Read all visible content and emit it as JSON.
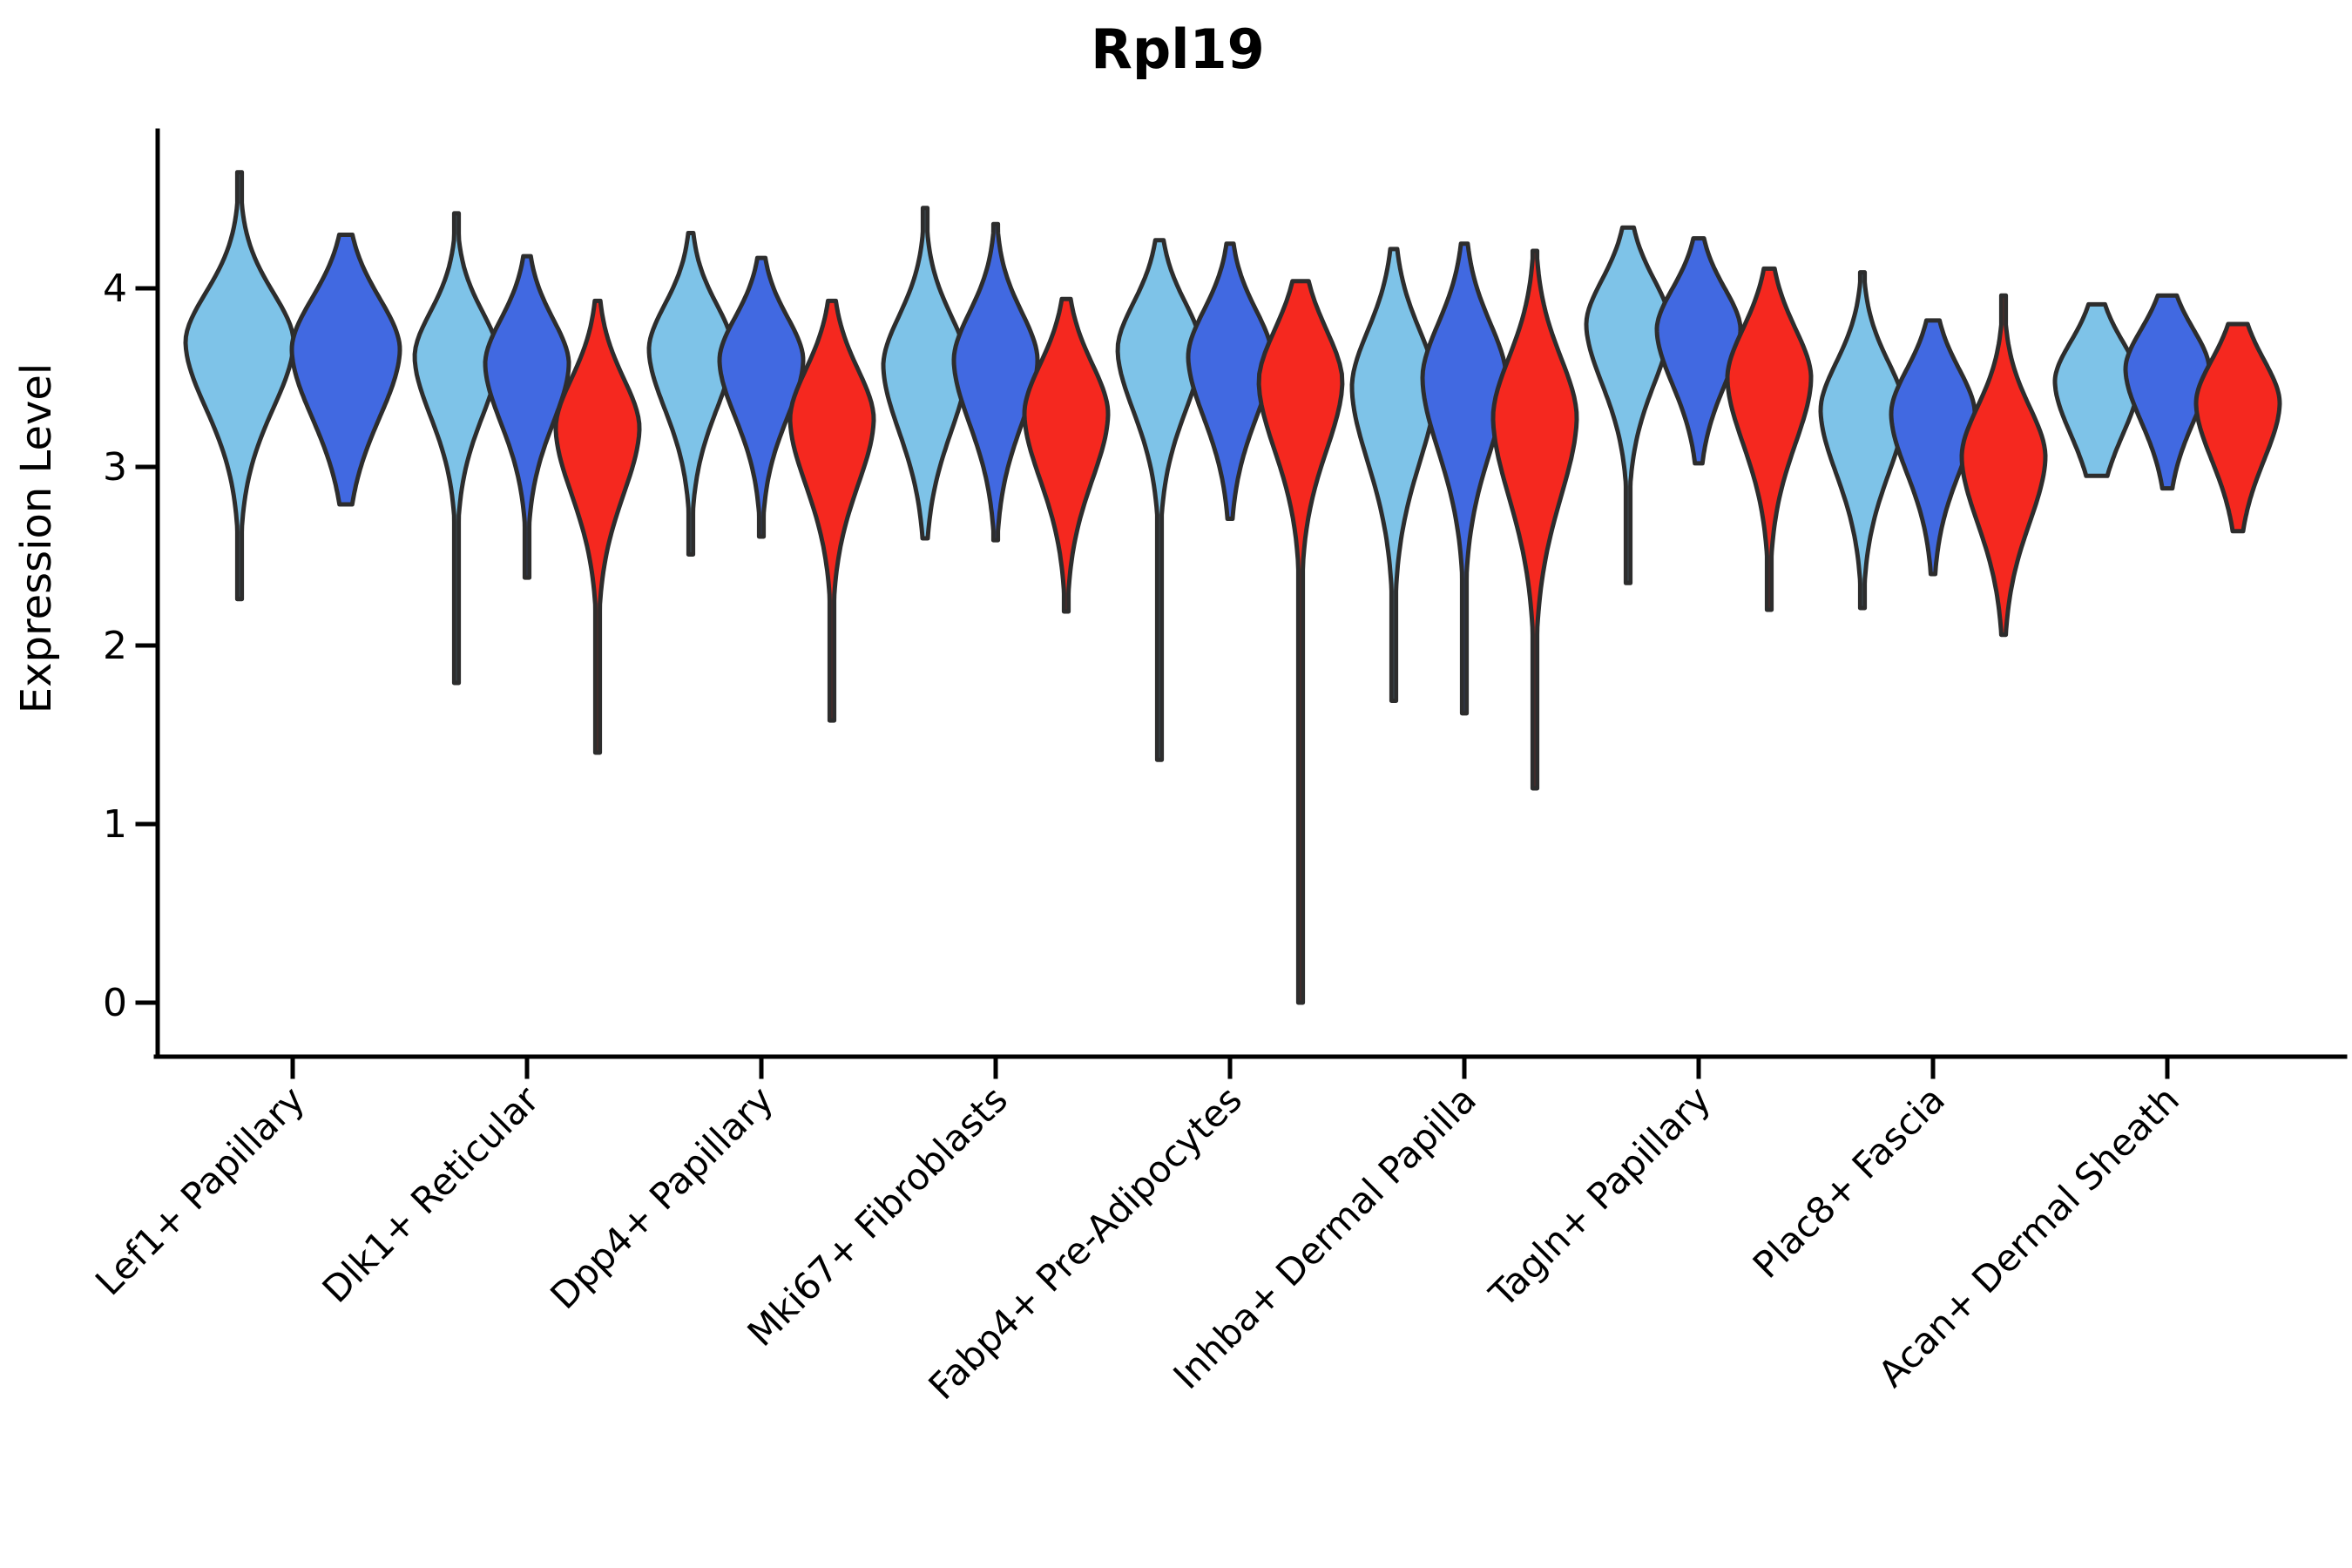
{
  "title": "Rpl19",
  "ylabel": "Expression Level",
  "axis_color": "#000000",
  "violin_stroke_color": "#2d2d2d",
  "series": [
    {
      "name": "light-blue",
      "color": "#7EC3E8"
    },
    {
      "name": "royal-blue",
      "color": "#4169E1"
    },
    {
      "name": "red",
      "color": "#F5281F"
    }
  ],
  "chart_data": {
    "type": "violin",
    "title": "Rpl19",
    "xlabel": "",
    "ylabel": "Expression Level",
    "ylim": [
      -0.3,
      4.9
    ],
    "yticks": [
      0,
      1,
      2,
      3,
      4
    ],
    "grid": "off",
    "legend": "none",
    "categories": [
      "Lef1+ Papillary",
      "Dlk1+ Reticular",
      "Dpp4+ Papillary",
      "Mki67+ Fibroblasts",
      "Fabp4+ Pre-Adipocytes",
      "Inhba+ Dermal Papilla",
      "Tagln+ Papillary",
      "Plac8+ Fascia",
      "Acan+ Dermal Sheath"
    ],
    "groups": [
      {
        "category": "Lef1+ Papillary",
        "violins": [
          {
            "series": 0,
            "min": 2.26,
            "max": 4.65,
            "mode": 3.7,
            "spread": 0.3
          },
          {
            "series": 1,
            "min": 2.79,
            "max": 4.3,
            "mode": 3.66,
            "spread": 0.31
          }
        ]
      },
      {
        "category": "Dlk1+ Reticular",
        "violins": [
          {
            "series": 0,
            "min": 1.79,
            "max": 4.42,
            "mode": 3.62,
            "spread": 0.27
          },
          {
            "series": 1,
            "min": 2.38,
            "max": 4.18,
            "mode": 3.58,
            "spread": 0.27
          },
          {
            "series": 2,
            "min": 1.4,
            "max": 3.93,
            "mode": 3.22,
            "spread": 0.3
          }
        ]
      },
      {
        "category": "Dpp4+ Papillary",
        "violins": [
          {
            "series": 0,
            "min": 2.51,
            "max": 4.31,
            "mode": 3.66,
            "spread": 0.27
          },
          {
            "series": 1,
            "min": 2.61,
            "max": 4.17,
            "mode": 3.6,
            "spread": 0.26
          },
          {
            "series": 2,
            "min": 1.58,
            "max": 3.93,
            "mode": 3.27,
            "spread": 0.3
          }
        ]
      },
      {
        "category": "Mki67+ Fibroblasts",
        "violins": [
          {
            "series": 0,
            "min": 2.6,
            "max": 4.45,
            "mode": 3.57,
            "spread": 0.3
          },
          {
            "series": 1,
            "min": 2.59,
            "max": 4.36,
            "mode": 3.6,
            "spread": 0.29
          },
          {
            "series": 2,
            "min": 2.19,
            "max": 3.94,
            "mode": 3.3,
            "spread": 0.3
          }
        ]
      },
      {
        "category": "Fabp4+ Pre-Adipocytes",
        "violins": [
          {
            "series": 0,
            "min": 1.36,
            "max": 4.27,
            "mode": 3.66,
            "spread": 0.28
          },
          {
            "series": 1,
            "min": 2.71,
            "max": 4.25,
            "mode": 3.62,
            "spread": 0.28
          },
          {
            "series": 2,
            "min": 0.0,
            "max": 4.04,
            "mode": 3.48,
            "spread": 0.31
          }
        ]
      },
      {
        "category": "Inhba+ Dermal Papilla",
        "violins": [
          {
            "series": 0,
            "min": 1.69,
            "max": 4.22,
            "mode": 3.45,
            "spread": 0.34
          },
          {
            "series": 1,
            "min": 1.62,
            "max": 4.25,
            "mode": 3.5,
            "spread": 0.33
          },
          {
            "series": 2,
            "min": 1.2,
            "max": 4.21,
            "mode": 3.28,
            "spread": 0.36
          }
        ]
      },
      {
        "category": "Tagln+ Papillary",
        "violins": [
          {
            "series": 0,
            "min": 2.35,
            "max": 4.34,
            "mode": 3.8,
            "spread": 0.27
          },
          {
            "series": 1,
            "min": 3.02,
            "max": 4.28,
            "mode": 3.77,
            "spread": 0.25
          },
          {
            "series": 2,
            "min": 2.2,
            "max": 4.11,
            "mode": 3.5,
            "spread": 0.3
          }
        ]
      },
      {
        "category": "Plac8+ Fascia",
        "violins": [
          {
            "series": 0,
            "min": 2.21,
            "max": 4.09,
            "mode": 3.32,
            "spread": 0.29
          },
          {
            "series": 1,
            "min": 2.4,
            "max": 3.82,
            "mode": 3.3,
            "spread": 0.27
          },
          {
            "series": 2,
            "min": 2.06,
            "max": 3.96,
            "mode": 3.06,
            "spread": 0.3
          }
        ]
      },
      {
        "category": "Acan+ Dermal Sheath",
        "violins": [
          {
            "series": 0,
            "min": 2.95,
            "max": 3.91,
            "mode": 3.48,
            "spread": 0.24
          },
          {
            "series": 1,
            "min": 2.88,
            "max": 3.96,
            "mode": 3.55,
            "spread": 0.24
          },
          {
            "series": 2,
            "min": 2.64,
            "max": 3.8,
            "mode": 3.36,
            "spread": 0.26
          }
        ]
      }
    ]
  }
}
